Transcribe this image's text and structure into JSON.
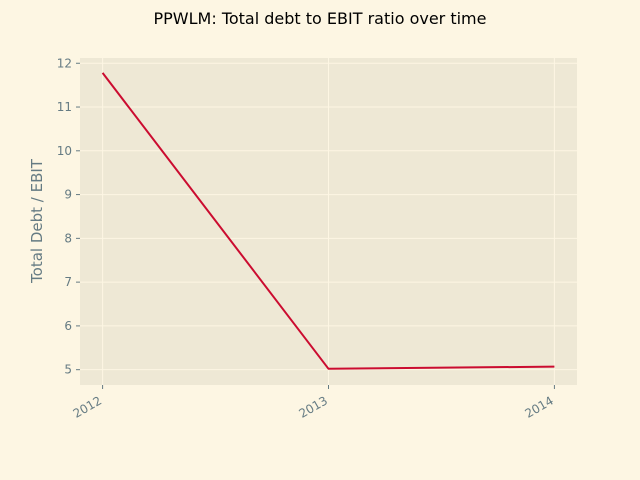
{
  "chart_data": {
    "type": "line",
    "title": "PPWLM: Total debt to EBIT ratio over time",
    "xlabel": "",
    "ylabel": "Total Debt / EBIT",
    "x": [
      "2012",
      "2013",
      "2014"
    ],
    "series": [
      {
        "values": [
          11.78,
          5.02,
          5.07
        ]
      }
    ],
    "xlim": [
      2011.9,
      2014.1
    ],
    "ylim": [
      4.65,
      12.12
    ],
    "yticks": [
      5,
      6,
      7,
      8,
      9,
      10,
      11,
      12
    ],
    "grid": true,
    "legend": "none",
    "colors": {
      "background": "#fdf6e3",
      "plot_background": "#eee8d5",
      "grid": "#fdf6e3",
      "line": "#cb0c30",
      "tick_text": "#657b83"
    }
  }
}
